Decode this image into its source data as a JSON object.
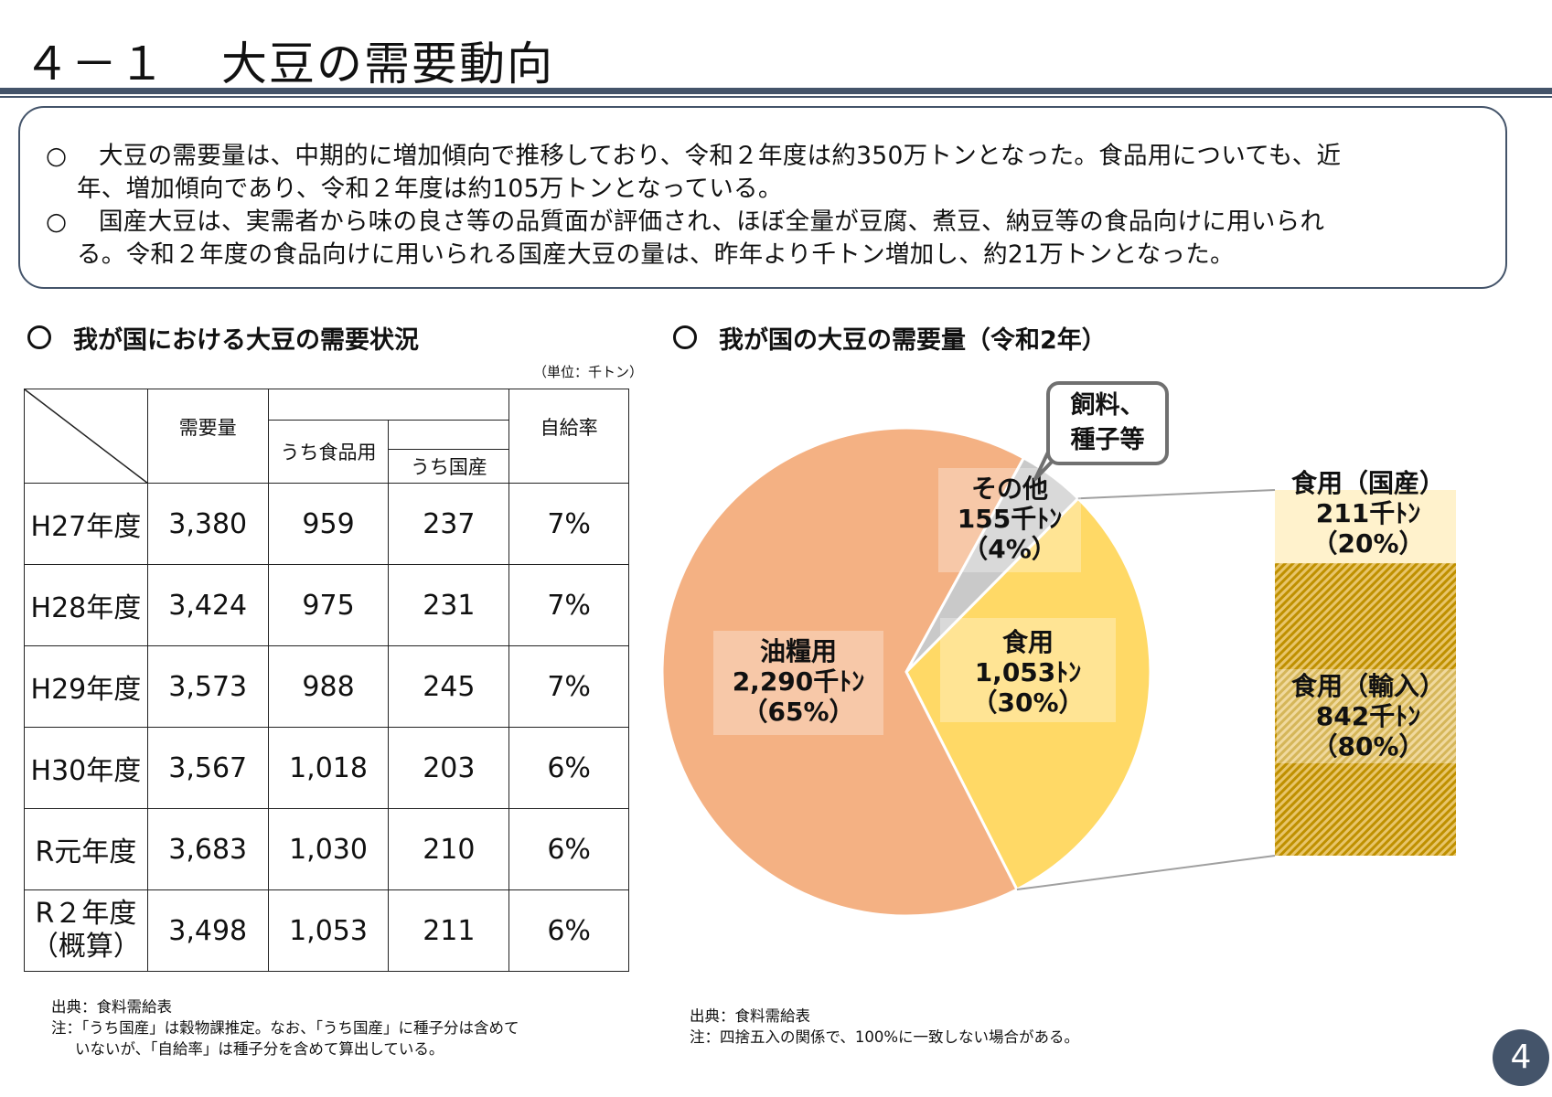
{
  "header": {
    "number": "４－１",
    "title": "大豆の需要動向"
  },
  "summary": {
    "bullet": "○",
    "lines": [
      "大豆の需要量は、中期的に増加傾向で推移しており、令和２年度は約350万トンとなった。食品用についても、近",
      "年、増加傾向であり、令和２年度は約105万トンとなっている。",
      "国産大豆は、実需者から味の良さ等の品質面が評価され、ほぼ全量が豆腐、煮豆、納豆等の食品向けに用いられ",
      "る。令和２年度の食品向けに用いられる国産大豆の量は、昨年より千トン増加し、約21万トンとなった。"
    ]
  },
  "table_section": {
    "title": "我が国における大豆の需要状況",
    "unit": "（単位：千トン）",
    "headers": {
      "demand": "需要量",
      "food": "うち食品用",
      "domestic": "うち国産",
      "self_sufficiency": "自給率"
    },
    "rows": [
      {
        "year": "H27年度",
        "demand": "3,380",
        "food": "959",
        "domestic": "237",
        "rate": "7%"
      },
      {
        "year": "H28年度",
        "demand": "3,424",
        "food": "975",
        "domestic": "231",
        "rate": "7%"
      },
      {
        "year": "H29年度",
        "demand": "3,573",
        "food": "988",
        "domestic": "245",
        "rate": "7%"
      },
      {
        "year": "H30年度",
        "demand": "3,567",
        "food": "1,018",
        "domestic": "203",
        "rate": "6%"
      },
      {
        "year": "R元年度",
        "demand": "3,683",
        "food": "1,030",
        "domestic": "210",
        "rate": "6%"
      },
      {
        "year": "R２年度",
        "year2": "（概算）",
        "demand": "3,498",
        "food": "1,053",
        "domestic": "211",
        "rate": "6%"
      }
    ],
    "source": "出典：食料需給表",
    "note1": "注：「うち国産」は穀物課推定。なお、「うち国産」に種子分は含めて",
    "note2": "いないが、「自給率」は種子分を含めて算出している。"
  },
  "chart_section": {
    "title": "我が国の大豆の需要量（令和2年）",
    "source": "出典：食料需給表",
    "note": "注：四捨五入の関係で、100%に一致しない場合がある。"
  },
  "chart_data": {
    "type": "pie",
    "title": "我が国の大豆の需要量（令和2年）",
    "unit": "千トン",
    "slices": [
      {
        "name": "油糧用",
        "value": 2290,
        "percent": 65,
        "label_value": "2,290千ﾄﾝ",
        "label_pct": "（65%）",
        "color": "#f4b183"
      },
      {
        "name": "その他",
        "value": 155,
        "percent": 4,
        "label_value": "155千ﾄﾝ",
        "label_pct": "（4%）",
        "color": "#c9c9c9"
      },
      {
        "name": "食用",
        "value": 1053,
        "percent": 30,
        "label_value": "1,053ﾄﾝ",
        "label_pct": "（30%）",
        "color": "#ffd966"
      }
    ],
    "callout": {
      "target": "その他",
      "text_line1": "飼料、",
      "text_line2": "種子等"
    },
    "breakdown": {
      "of": "食用",
      "type": "stacked-bar",
      "segments": [
        {
          "name": "食用（国産）",
          "value": 211,
          "percent": 20,
          "label_value": "211千ﾄﾝ",
          "label_pct": "（20%）",
          "color": "#fff2cc"
        },
        {
          "name": "食用（輸入）",
          "value": 842,
          "percent": 80,
          "label_value": "842千ﾄﾝ",
          "label_pct": "（80%）",
          "color": "#bf9000"
        }
      ]
    }
  },
  "page": {
    "number": "4"
  }
}
